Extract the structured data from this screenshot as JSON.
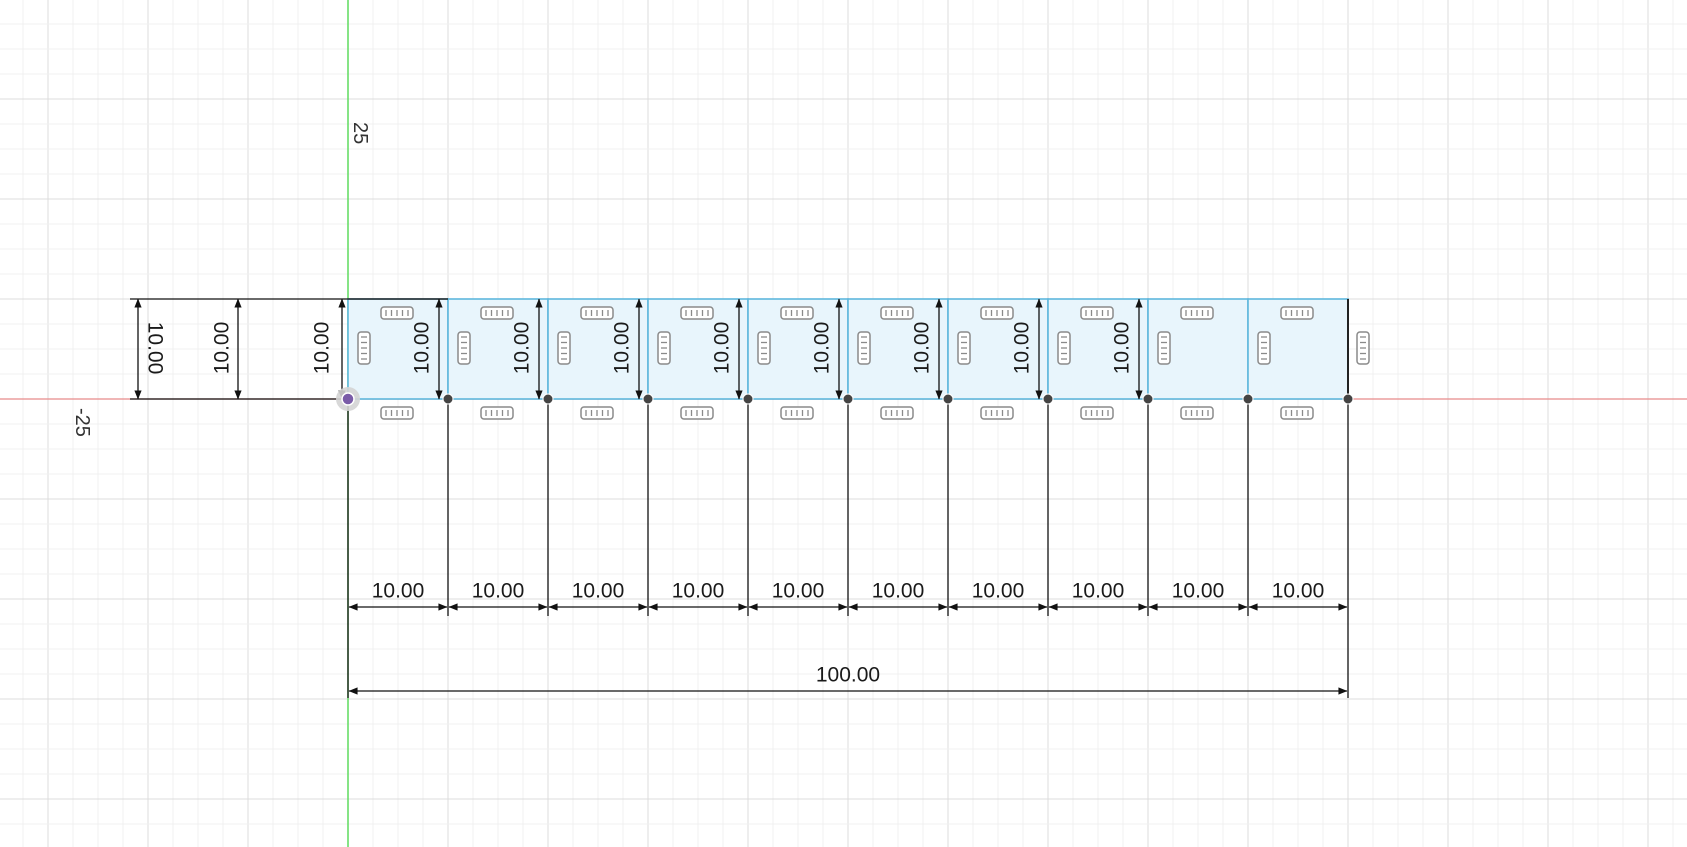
{
  "app": {
    "view": "sketch-canvas"
  },
  "colors": {
    "background": "#ffffff",
    "grid_minor": "#f1f1f1",
    "grid_major": "#dcdcdc",
    "x_axis": "#e88a8a",
    "y_axis": "#5fdc5f",
    "profile_fill": "#e8f5fc",
    "profile_stroke": "#5fb7dd",
    "dimension": "#111111",
    "constraint_glyph": "#8a8a8a",
    "point": "#444444",
    "origin": "#7a5ca8"
  },
  "axes": {
    "y_axis_label": "25",
    "x_axis_label": "-25"
  },
  "sketch": {
    "square_count": 10,
    "square_size": 10,
    "vertical_dimensions": {
      "outer": "10.00",
      "middle": "10.00",
      "inner": "10.00",
      "between_squares": [
        "10.00",
        "10.00",
        "10.00",
        "10.00",
        "10.00",
        "10.00",
        "10.00",
        "10.00"
      ]
    },
    "horizontal_dimensions": [
      "10.00",
      "10.00",
      "10.00",
      "10.00",
      "10.00",
      "10.00",
      "10.00",
      "10.00",
      "10.00",
      "10.00"
    ],
    "overall_dimension": "100.00",
    "constraint_icons": [
      "horizontal-constraint-icon",
      "vertical-constraint-icon"
    ]
  }
}
